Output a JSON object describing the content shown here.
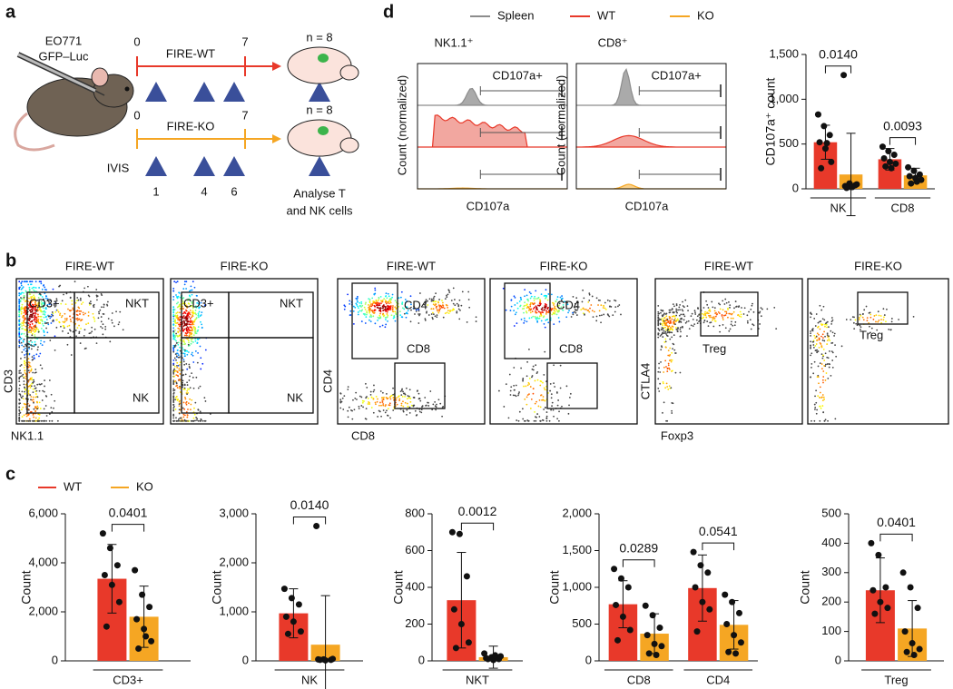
{
  "panel_a": {
    "label": "a",
    "cell_line": "EO771",
    "reporter": "GFP–Luc",
    "groups": [
      {
        "day_start": "0",
        "day_end": "7",
        "name": "FIRE-WT",
        "n": "n = 8"
      },
      {
        "day_start": "0",
        "day_end": "7",
        "name": "FIRE-KO",
        "n": "n = 8"
      }
    ],
    "imaging": "IVIS",
    "days": [
      "1",
      "4",
      "6"
    ],
    "readout": [
      "Analyse T",
      "and NK cells"
    ]
  },
  "panel_b": {
    "label": "b",
    "plots": [
      {
        "title": "FIRE-WT",
        "gates": [
          "CD3+",
          "NKT",
          "NK"
        ]
      },
      {
        "title": "FIRE-KO",
        "gates": [
          "CD3+",
          "NKT",
          "NK"
        ]
      },
      {
        "title": "FIRE-WT",
        "gates": [
          "CD4",
          "CD8"
        ]
      },
      {
        "title": "FIRE-KO",
        "gates": [
          "CD4",
          "CD8"
        ]
      },
      {
        "title": "FIRE-WT",
        "gates": [
          "Treg"
        ]
      },
      {
        "title": "FIRE-KO",
        "gates": [
          "Treg"
        ]
      }
    ],
    "axes": [
      {
        "x": "NK1.1",
        "y": "CD3"
      },
      {
        "x": "CD8",
        "y": "CD4"
      },
      {
        "x": "Foxp3",
        "y": "CTLA4"
      }
    ]
  },
  "panel_c": {
    "label": "c"
  },
  "panel_d": {
    "label": "d",
    "legend": [
      {
        "name": "Spleen",
        "color": "#8c8c8c"
      },
      {
        "name": "WT",
        "color": "#e8392a"
      },
      {
        "name": "KO",
        "color": "#f5a623"
      }
    ],
    "histograms": [
      {
        "title": "NK1.1⁺"
      },
      {
        "title": "CD8⁺"
      }
    ],
    "gate": "CD107a+",
    "ylabel": "Count (normalized)",
    "xlabel": "CD107a"
  },
  "chart_data": [
    {
      "type": "bar",
      "ylabel": "CD107a⁺ count",
      "ylim": [
        0,
        1500
      ],
      "yticks": [
        0,
        500,
        {
          "value": 1000,
          "label": "1,000"
        },
        {
          "value": 1500,
          "label": "1,500"
        }
      ],
      "categories": [
        "NK",
        "CD8"
      ],
      "annotations": [
        "0.0140",
        "0.0093"
      ],
      "series": [
        {
          "color": "#e8392a",
          "values": [
            520,
            330
          ],
          "errors": [
            190,
            120
          ],
          "points": [
            [
              830,
              700,
              600,
              520,
              450,
              300,
              230,
              510
            ],
            [
              470,
              420,
              380,
              340,
              300,
              280,
              250,
              230
            ]
          ]
        },
        {
          "color": "#f5a623",
          "values": [
            160,
            150
          ],
          "errors": [
            460,
            80
          ],
          "points": [
            [
              1270,
              60,
              40,
              30,
              20,
              50,
              10,
              20
            ],
            [
              240,
              200,
              160,
              140,
              120,
              100,
              60,
              80
            ]
          ]
        }
      ]
    },
    {
      "type": "bar",
      "ylabel": "Count",
      "ylim": [
        0,
        6000
      ],
      "yticks": [
        0,
        {
          "value": 2000,
          "label": "2,000"
        },
        {
          "value": 4000,
          "label": "4,000"
        },
        {
          "value": 6000,
          "label": "6,000"
        }
      ],
      "categories": [
        "CD3+"
      ],
      "annotations": [
        "0.0401"
      ],
      "series": [
        {
          "name": "WT",
          "color": "#e8392a",
          "values": [
            3350
          ],
          "errors": [
            1400
          ],
          "points": [
            [
              5200,
              4600,
              3900,
              3500,
              3100,
              2400,
              1400
            ]
          ]
        },
        {
          "name": "KO",
          "color": "#f5a623",
          "values": [
            1800
          ],
          "errors": [
            1250
          ],
          "points": [
            [
              3700,
              2700,
              2200,
              1700,
              1300,
              800,
              500,
              1000
            ]
          ]
        }
      ]
    },
    {
      "type": "bar",
      "ylabel": "Count",
      "ylim": [
        0,
        3000
      ],
      "yticks": [
        0,
        {
          "value": 1000,
          "label": "1,000"
        },
        {
          "value": 2000,
          "label": "2,000"
        },
        {
          "value": 3000,
          "label": "3,000"
        }
      ],
      "categories": [
        "NK"
      ],
      "annotations": [
        "0.0140"
      ],
      "series": [
        {
          "color": "#e8392a",
          "values": [
            970
          ],
          "errors": [
            500
          ],
          "points": [
            [
              1470,
              1280,
              1150,
              900,
              800,
              600,
              550
            ]
          ]
        },
        {
          "color": "#f5a623",
          "values": [
            330
          ],
          "errors": [
            1000
          ],
          "points": [
            [
              2750,
              30,
              20,
              30,
              10,
              40,
              20
            ]
          ]
        }
      ]
    },
    {
      "type": "bar",
      "ylabel": "Count",
      "ylim": [
        0,
        800
      ],
      "yticks": [
        0,
        200,
        400,
        600,
        800
      ],
      "categories": [
        "NKT"
      ],
      "annotations": [
        "0.0012"
      ],
      "series": [
        {
          "color": "#e8392a",
          "values": [
            330
          ],
          "errors": [
            260
          ],
          "points": [
            [
              700,
              690,
              460,
              280,
              200,
              100,
              70
            ]
          ]
        },
        {
          "color": "#f5a623",
          "values": [
            20
          ],
          "errors": [
            60
          ],
          "points": [
            [
              40,
              20,
              10,
              15,
              5,
              25,
              10,
              30
            ]
          ]
        }
      ]
    },
    {
      "type": "bar",
      "ylabel": "Count",
      "ylim": [
        0,
        2000
      ],
      "yticks": [
        0,
        500,
        {
          "value": 1000,
          "label": "1,000"
        },
        {
          "value": 1500,
          "label": "1,500"
        },
        {
          "value": 2000,
          "label": "2,000"
        }
      ],
      "categories": [
        "CD8",
        "CD4"
      ],
      "annotations": [
        "0.0289",
        "0.0541"
      ],
      "series": [
        {
          "color": "#e8392a",
          "values": [
            770,
            990
          ],
          "errors": [
            320,
            450
          ],
          "points": [
            [
              1250,
              1120,
              1000,
              760,
              600,
              420,
              280
            ],
            [
              1480,
              1300,
              1200,
              1000,
              800,
              700,
              400
            ]
          ]
        },
        {
          "color": "#f5a623",
          "values": [
            370,
            490
          ],
          "errors": [
            270,
            330
          ],
          "points": [
            [
              750,
              620,
              450,
              350,
              230,
              200,
              100,
              80
            ],
            [
              900,
              800,
              650,
              500,
              350,
              250,
              120,
              100
            ]
          ]
        }
      ]
    },
    {
      "type": "bar",
      "ylabel": "Count",
      "ylim": [
        0,
        500
      ],
      "yticks": [
        0,
        100,
        200,
        300,
        400,
        500
      ],
      "categories": [
        "Treg"
      ],
      "annotations": [
        "0.0401"
      ],
      "series": [
        {
          "color": "#e8392a",
          "values": [
            240
          ],
          "errors": [
            110
          ],
          "points": [
            [
              400,
              360,
              250,
              240,
              200,
              180,
              160
            ]
          ]
        },
        {
          "color": "#f5a623",
          "values": [
            110
          ],
          "errors": [
            95
          ],
          "points": [
            [
              300,
              250,
              180,
              100,
              60,
              40,
              30,
              20
            ]
          ]
        }
      ]
    }
  ]
}
